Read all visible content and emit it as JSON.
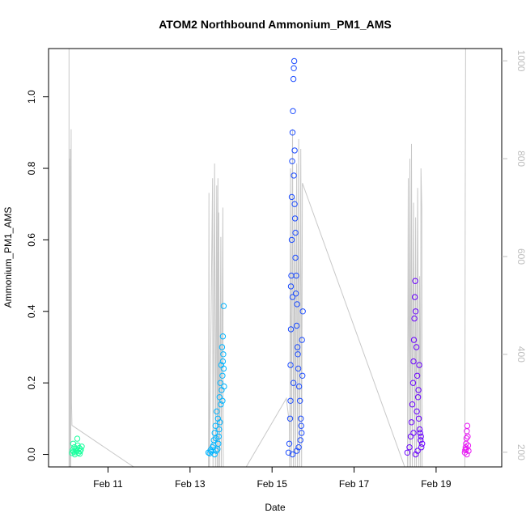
{
  "chart_data": {
    "type": "scatter",
    "title": "ATOM2 Northbound Ammonium_PM1_AMS",
    "xlabel": "Date",
    "ylabel": "Ammonium_PM1_AMS",
    "x_ticks": [
      "Feb 11",
      "Feb 13",
      "Feb 15",
      "Feb 17",
      "Feb 19"
    ],
    "x_tick_days": [
      11,
      13,
      15,
      17,
      19
    ],
    "xlim_days": [
      9.55,
      20.6
    ],
    "ylim": [
      -0.035,
      1.135
    ],
    "y_ticks": [
      0.0,
      0.2,
      0.4,
      0.6,
      0.8,
      1.0
    ],
    "y_tick_labels": [
      "0.0",
      "0.2",
      "0.4",
      "0.6",
      "0.8",
      "1.0"
    ],
    "secondary_axis": {
      "label": "",
      "reversed": true,
      "ylim": [
        1025,
        170
      ],
      "ticks": [
        200,
        400,
        600,
        800,
        1000
      ],
      "tick_labels": [
        "200",
        "400",
        "600",
        "800",
        "1000"
      ],
      "color": "#bdbdbd"
    },
    "grid": false,
    "series": [
      {
        "color": "#1aff9e",
        "points": [
          [
            10.12,
            0.004
          ],
          [
            10.14,
            0.012
          ],
          [
            10.16,
            0.008
          ],
          [
            10.18,
            0.02
          ],
          [
            10.2,
            0.006
          ],
          [
            10.22,
            0.015
          ],
          [
            10.24,
            0.01
          ],
          [
            10.26,
            0.025
          ],
          [
            10.28,
            0.005
          ],
          [
            10.3,
            0.018
          ],
          [
            10.32,
            0.009
          ],
          [
            10.34,
            0.013
          ],
          [
            10.36,
            0.022
          ],
          [
            10.15,
            0.03
          ],
          [
            10.25,
            0.044
          ],
          [
            10.19,
            0.0
          ],
          [
            10.31,
            0.002
          ]
        ]
      },
      {
        "color": "#00b4ff",
        "points": [
          [
            13.45,
            0.005
          ],
          [
            13.5,
            0.012
          ],
          [
            13.55,
            0.02
          ],
          [
            13.58,
            0.04
          ],
          [
            13.6,
            0.06
          ],
          [
            13.62,
            0.08
          ],
          [
            13.65,
            0.12
          ],
          [
            13.68,
            0.1
          ],
          [
            13.7,
            0.05
          ],
          [
            13.72,
            0.16
          ],
          [
            13.74,
            0.2
          ],
          [
            13.76,
            0.25
          ],
          [
            13.78,
            0.3
          ],
          [
            13.8,
            0.33
          ],
          [
            13.82,
            0.415
          ],
          [
            13.81,
            0.28
          ],
          [
            13.79,
            0.22
          ],
          [
            13.77,
            0.18
          ],
          [
            13.75,
            0.14
          ],
          [
            13.73,
            0.09
          ],
          [
            13.71,
            0.07
          ],
          [
            13.69,
            0.03
          ],
          [
            13.67,
            0.015
          ],
          [
            13.64,
            0.01
          ],
          [
            13.6,
            0.0
          ],
          [
            13.52,
            0.008
          ],
          [
            13.48,
            0.003
          ],
          [
            13.57,
            0.025
          ],
          [
            13.63,
            0.045
          ],
          [
            13.8,
            0.26
          ],
          [
            13.82,
            0.24
          ],
          [
            13.83,
            0.19
          ],
          [
            13.79,
            0.15
          ]
        ]
      },
      {
        "color": "#1c4cff",
        "points": [
          [
            15.4,
            0.005
          ],
          [
            15.42,
            0.03
          ],
          [
            15.44,
            0.1
          ],
          [
            15.45,
            0.25
          ],
          [
            15.46,
            0.35
          ],
          [
            15.47,
            0.5
          ],
          [
            15.48,
            0.72
          ],
          [
            15.49,
            0.82
          ],
          [
            15.5,
            0.9
          ],
          [
            15.51,
            0.96
          ],
          [
            15.52,
            1.05
          ],
          [
            15.53,
            1.08
          ],
          [
            15.54,
            1.1
          ],
          [
            15.55,
            0.85
          ],
          [
            15.56,
            0.66
          ],
          [
            15.57,
            0.55
          ],
          [
            15.58,
            0.45
          ],
          [
            15.6,
            0.36
          ],
          [
            15.62,
            0.3
          ],
          [
            15.64,
            0.24
          ],
          [
            15.66,
            0.19
          ],
          [
            15.68,
            0.15
          ],
          [
            15.7,
            0.1
          ],
          [
            15.72,
            0.06
          ],
          [
            15.74,
            0.22
          ],
          [
            15.75,
            0.4
          ],
          [
            15.73,
            0.32
          ],
          [
            15.71,
            0.08
          ],
          [
            15.69,
            0.04
          ],
          [
            15.65,
            0.02
          ],
          [
            15.6,
            0.01
          ],
          [
            15.5,
            0.0
          ],
          [
            15.45,
            0.15
          ],
          [
            15.48,
            0.6
          ],
          [
            15.53,
            0.78
          ],
          [
            15.55,
            0.7
          ],
          [
            15.57,
            0.62
          ],
          [
            15.59,
            0.5
          ],
          [
            15.61,
            0.42
          ],
          [
            15.63,
            0.28
          ],
          [
            15.52,
            0.2
          ],
          [
            15.5,
            0.44
          ],
          [
            15.46,
            0.47
          ]
        ]
      },
      {
        "color": "#6a00ff",
        "points": [
          [
            18.3,
            0.005
          ],
          [
            18.35,
            0.02
          ],
          [
            18.38,
            0.05
          ],
          [
            18.4,
            0.09
          ],
          [
            18.42,
            0.14
          ],
          [
            18.44,
            0.2
          ],
          [
            18.45,
            0.26
          ],
          [
            18.46,
            0.32
          ],
          [
            18.47,
            0.38
          ],
          [
            18.48,
            0.44
          ],
          [
            18.49,
            0.485
          ],
          [
            18.5,
            0.4
          ],
          [
            18.52,
            0.3
          ],
          [
            18.54,
            0.22
          ],
          [
            18.56,
            0.16
          ],
          [
            18.58,
            0.1
          ],
          [
            18.6,
            0.07
          ],
          [
            18.62,
            0.04
          ],
          [
            18.64,
            0.02
          ],
          [
            18.55,
            0.01
          ],
          [
            18.5,
            0.0
          ],
          [
            18.45,
            0.06
          ],
          [
            18.53,
            0.12
          ],
          [
            18.57,
            0.18
          ],
          [
            18.59,
            0.25
          ],
          [
            18.61,
            0.06
          ],
          [
            18.66,
            0.03
          ],
          [
            18.63,
            0.05
          ]
        ]
      },
      {
        "color": "#e817f5",
        "points": [
          [
            19.7,
            0.005
          ],
          [
            19.71,
            0.012
          ],
          [
            19.72,
            0.02
          ],
          [
            19.73,
            0.03
          ],
          [
            19.74,
            0.045
          ],
          [
            19.75,
            0.065
          ],
          [
            19.76,
            0.08
          ],
          [
            19.77,
            0.05
          ],
          [
            19.78,
            0.025
          ],
          [
            19.79,
            0.01
          ],
          [
            19.75,
            0.0
          ],
          [
            19.73,
            0.015
          ]
        ]
      }
    ],
    "altitude_trace": {
      "color": "#c8c8c8",
      "points": [
        [
          10.05,
          1025
        ],
        [
          10.05,
          160
        ],
        [
          10.06,
          800
        ],
        [
          10.07,
          150
        ],
        [
          10.08,
          820
        ],
        [
          10.09,
          170
        ],
        [
          10.1,
          860
        ],
        [
          10.11,
          300
        ],
        [
          10.12,
          255
        ],
        [
          11.8,
          160
        ],
        [
          13.45,
          155
        ],
        [
          13.46,
          730
        ],
        [
          13.47,
          150
        ],
        [
          13.55,
          760
        ],
        [
          13.56,
          155
        ],
        [
          13.6,
          790
        ],
        [
          13.62,
          160
        ],
        [
          13.65,
          745
        ],
        [
          13.66,
          150
        ],
        [
          13.68,
          760
        ],
        [
          13.69,
          155
        ],
        [
          13.7,
          690
        ],
        [
          13.72,
          160
        ],
        [
          13.75,
          640
        ],
        [
          13.76,
          155
        ],
        [
          13.8,
          700
        ],
        [
          13.81,
          150
        ],
        [
          14.3,
          160
        ],
        [
          15.35,
          310
        ],
        [
          15.42,
          260
        ],
        [
          15.43,
          160
        ],
        [
          15.45,
          780
        ],
        [
          15.47,
          150
        ],
        [
          15.5,
          860
        ],
        [
          15.52,
          160
        ],
        [
          15.55,
          720
        ],
        [
          15.57,
          150
        ],
        [
          15.6,
          790
        ],
        [
          15.62,
          160
        ],
        [
          15.65,
          840
        ],
        [
          15.67,
          150
        ],
        [
          15.7,
          820
        ],
        [
          15.72,
          165
        ],
        [
          15.74,
          750
        ],
        [
          18.3,
          155
        ],
        [
          18.32,
          760
        ],
        [
          18.34,
          160
        ],
        [
          18.36,
          800
        ],
        [
          18.38,
          150
        ],
        [
          18.4,
          830
        ],
        [
          18.42,
          160
        ],
        [
          18.45,
          710
        ],
        [
          18.48,
          155
        ],
        [
          18.5,
          680
        ],
        [
          18.52,
          160
        ],
        [
          18.55,
          740
        ],
        [
          18.58,
          165
        ],
        [
          18.6,
          560
        ],
        [
          18.62,
          160
        ],
        [
          18.63,
          780
        ],
        [
          18.65,
          700
        ],
        [
          18.66,
          160
        ],
        [
          19.7,
          155
        ],
        [
          19.71,
          720
        ],
        [
          19.72,
          1025
        ]
      ]
    }
  }
}
